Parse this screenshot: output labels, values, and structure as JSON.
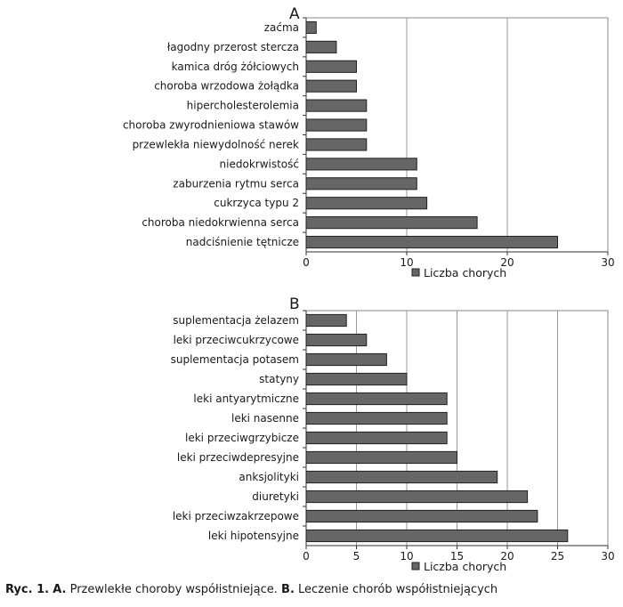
{
  "chart_data": [
    {
      "type": "bar",
      "orientation": "horizontal",
      "panel_label": "A",
      "categories": [
        "zaćma",
        "łagodny przerost stercza",
        "kamica dróg żółciowych",
        "choroba wrzodowa żołądka",
        "hipercholesterolemia",
        "choroba zwyrodnieniowa stawów",
        "przewlekła niewydolność nerek",
        "niedokrwistość",
        "zaburzenia rytmu serca",
        "cukrzyca typu 2",
        "choroba niedokrwienna serca",
        "nadciśnienie tętnicze"
      ],
      "series": [
        {
          "name": "Liczba chorych",
          "values": [
            1,
            3,
            5,
            5,
            6,
            6,
            6,
            11,
            11,
            12,
            17,
            25
          ]
        }
      ],
      "xlim": [
        0,
        30
      ],
      "xticks": [
        "0",
        "10",
        "20",
        "30"
      ],
      "xtick_values": [
        0,
        10,
        20,
        30
      ],
      "grid": "vertical",
      "legend_position": "bottom",
      "bar_color": "#666666"
    },
    {
      "type": "bar",
      "orientation": "horizontal",
      "panel_label": "B",
      "categories": [
        "suplementacja żelazem",
        "leki przeciwcukrzycowe",
        "suplementacja potasem",
        "statyny",
        "leki antyarytmiczne",
        "leki nasenne",
        "leki przeciwgrzybicze",
        "leki przeciwdepresyjne",
        "anksjolityki",
        "diuretyki",
        "leki przeciwzakrzepowe",
        "leki hipotensyjne"
      ],
      "series": [
        {
          "name": "Liczba chorych",
          "values": [
            4,
            6,
            8,
            10,
            14,
            14,
            14,
            15,
            19,
            22,
            23,
            26
          ]
        }
      ],
      "xlim": [
        0,
        30
      ],
      "xticks": [
        "0",
        "5",
        "10",
        "15",
        "20",
        "25",
        "30"
      ],
      "xtick_values": [
        0,
        5,
        10,
        15,
        20,
        25,
        30
      ],
      "grid": "vertical",
      "legend_position": "bottom",
      "bar_color": "#666666"
    }
  ],
  "caption": {
    "prefix": "Ryc. 1.",
    "a_label": "A.",
    "a_text": "Przewlekłe choroby współistniejące.",
    "b_label": "B.",
    "b_text": "Leczenie chorób współistniejących"
  }
}
